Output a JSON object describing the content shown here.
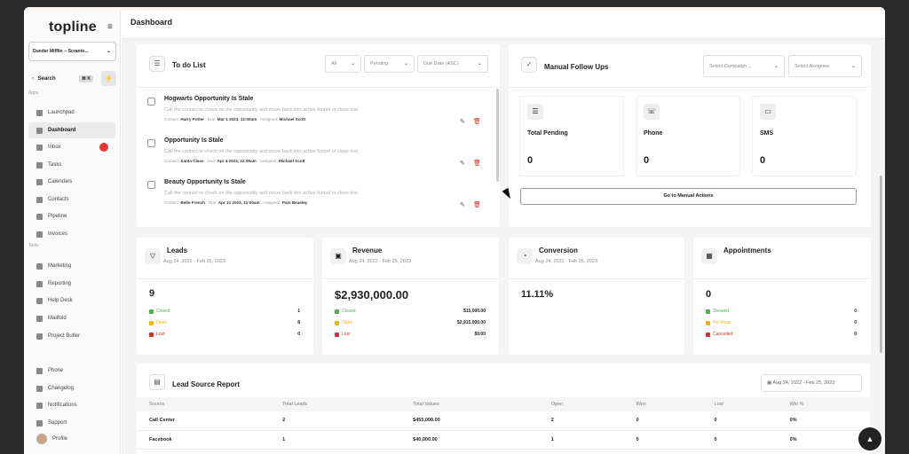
{
  "app": {
    "logo": "topline",
    "page_title": "Dashboard"
  },
  "sidebar": {
    "account": "Dunder Mifflin -- Scranto...",
    "search_label": "Search",
    "search_shortcut": "⌘ K",
    "apps_label": "Apps",
    "tools_label": "Tools",
    "items": [
      {
        "label": "Launchpad",
        "icon": "rocket-icon"
      },
      {
        "label": "Dashboard",
        "icon": "grid-icon"
      },
      {
        "label": "Inbox",
        "icon": "inbox-icon"
      },
      {
        "label": "Tasks",
        "icon": "tasks-icon"
      },
      {
        "label": "Calendars",
        "icon": "calendar-icon"
      },
      {
        "label": "Contacts",
        "icon": "contacts-icon"
      },
      {
        "label": "Pipeline",
        "icon": "funnel-icon"
      },
      {
        "label": "Invoices",
        "icon": "invoice-icon"
      }
    ],
    "tools": [
      {
        "label": "Marketing",
        "icon": "megaphone-icon"
      },
      {
        "label": "Reporting",
        "icon": "chart-icon"
      },
      {
        "label": "Help Desk",
        "icon": "help-icon"
      },
      {
        "label": "Mailfold",
        "icon": "mail-icon"
      },
      {
        "label": "Project Butler",
        "icon": "butler-icon"
      }
    ],
    "bottom": [
      {
        "label": "Phone",
        "icon": "phone-icon"
      },
      {
        "label": "Changelog",
        "icon": "changelog-icon"
      },
      {
        "label": "Notifications",
        "icon": "bell-icon"
      },
      {
        "label": "Support",
        "icon": "support-icon"
      },
      {
        "label": "Profile",
        "icon": "avatar"
      }
    ]
  },
  "todo": {
    "title": "To do List",
    "filters": [
      "All",
      "Pending",
      "Due Date (ASC)"
    ],
    "items": [
      {
        "title": "Hogwarts Opportunity Is Stale",
        "desc": "Call the contact to check on the opportunity and move back into active funnel or close lost.",
        "contact_label": "Contact:",
        "contact": "Harry Potter",
        "due_label": "Due:",
        "due": "Mar 1 2023, 12:00am",
        "assigned_label": "Assigned:",
        "assigned": "Michael Scott"
      },
      {
        "title": "Opportunity Is Stale",
        "desc": "Call the contact to check on the opportunity and move back into active funnel or close lost.",
        "contact_label": "Contact:",
        "contact": "Santa Claus",
        "due_label": "Due:",
        "due": "Apr 4 2023, 12:00am",
        "assigned_label": "Assigned:",
        "assigned": "Michael Scott"
      },
      {
        "title": "Beauty Opportunity Is Stale",
        "desc": "Call the contact to check on the opportunity and move back into active funnel or close lost.",
        "contact_label": "Contact:",
        "contact": "Belle French",
        "due_label": "Due:",
        "due": "Apr 12 2023, 12:00am",
        "assigned_label": "Assigned:",
        "assigned": "Pam Beasley"
      }
    ]
  },
  "followups": {
    "title": "Manual Follow Ups",
    "campaign_placeholder": "Select Campaign ...",
    "assignee_placeholder": "Select Assignee",
    "stats": [
      {
        "label": "Total Pending",
        "value": "0"
      },
      {
        "label": "Phone",
        "value": "0"
      },
      {
        "label": "SMS",
        "value": "0"
      }
    ],
    "action_button": "Go to Manual Actions"
  },
  "kpis": {
    "leads": {
      "title": "Leads",
      "range": "Aug 24, 2022 - Feb 25, 2023",
      "value": "9",
      "rows": [
        {
          "label": "Closed",
          "value": "1"
        },
        {
          "label": "Open",
          "value": "8"
        },
        {
          "label": "Lost",
          "value": "0"
        }
      ]
    },
    "revenue": {
      "title": "Revenue",
      "range": "Aug 24, 2022 - Feb 25, 2023",
      "value": "$2,930,000.00",
      "rows": [
        {
          "label": "Closed",
          "value": "$15,000.00"
        },
        {
          "label": "Open",
          "value": "$2,915,000.00"
        },
        {
          "label": "Lost",
          "value": "$0.00"
        }
      ]
    },
    "conversion": {
      "title": "Conversion",
      "range": "Aug 24, 2022 - Feb 25, 2023",
      "value": "11.11%"
    },
    "appointments": {
      "title": "Appointments",
      "value": "0",
      "rows": [
        {
          "label": "Showed",
          "value": "0"
        },
        {
          "label": "No Show",
          "value": "0"
        },
        {
          "label": "Cancelled",
          "value": "0"
        }
      ]
    }
  },
  "lead_source": {
    "title": "Lead Source Report",
    "range": "Aug 24, 2022 - Feb 25, 2023",
    "columns": [
      "Source",
      "Total Leads",
      "Total Values",
      "Open",
      "Won",
      "Lost",
      "Win %"
    ],
    "rows": [
      [
        "Call Center",
        "2",
        "$455,000.00",
        "2",
        "0",
        "0",
        "0%"
      ],
      [
        "Facebook",
        "1",
        "$40,000.00",
        "1",
        "0",
        "0",
        "0%"
      ]
    ]
  },
  "colors": {
    "closed": "#4caf50",
    "open": "#f0b400",
    "lost": "#d32f2f",
    "badge": "#e53935"
  }
}
